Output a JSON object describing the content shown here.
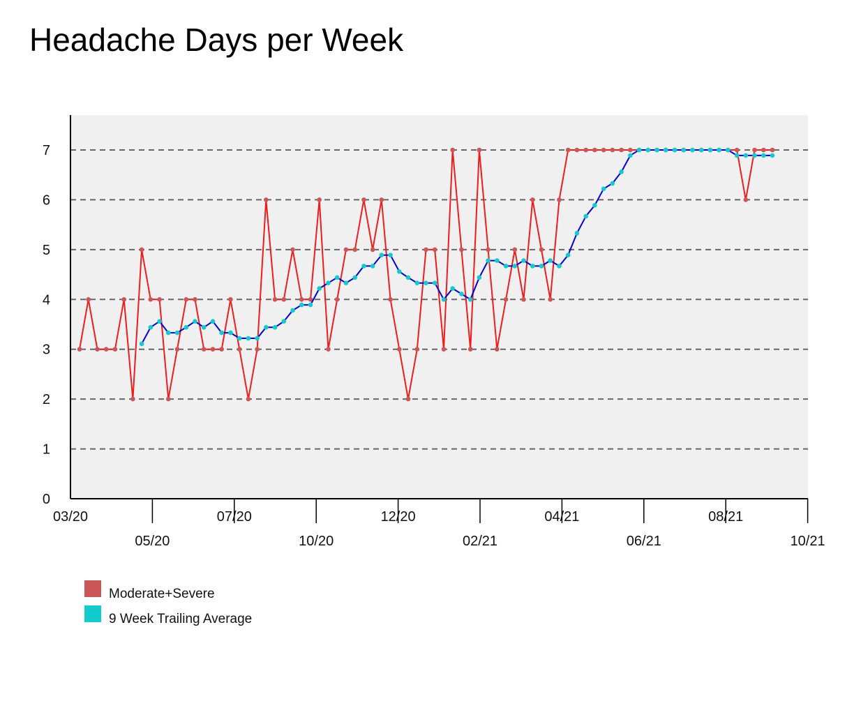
{
  "chart_data": {
    "type": "line",
    "title": "Headache Days per Week",
    "xlabel": "",
    "ylabel": "",
    "ylim": [
      0,
      7.7
    ],
    "yticks": [
      0,
      1,
      2,
      3,
      4,
      5,
      6,
      7
    ],
    "grid": "horizontal dashed",
    "legend_position": "bottom-left",
    "x_ticks_major": [
      "03/20",
      "07/20",
      "12/20",
      "04/21",
      "08/21"
    ],
    "x_ticks_minor": [
      "05/20",
      "10/20",
      "02/21",
      "06/21",
      "10/21"
    ],
    "series": [
      {
        "name": "Moderate+Severe",
        "color": "#ee1c1c",
        "marker_color": "#cc5555",
        "values": [
          3,
          4,
          3,
          3,
          3,
          4,
          2,
          5,
          4,
          4,
          2,
          3,
          4,
          4,
          3,
          3,
          3,
          4,
          3,
          2,
          3,
          6,
          4,
          4,
          5,
          4,
          4,
          6,
          3,
          4,
          5,
          5,
          6,
          5,
          6,
          4,
          3,
          2,
          3,
          5,
          5,
          3,
          7,
          5,
          3,
          7,
          5,
          3,
          4,
          5,
          4,
          6,
          5,
          4,
          6,
          7,
          7,
          7,
          7,
          7,
          7,
          7,
          7,
          7,
          7,
          7,
          7,
          7,
          7,
          7,
          7,
          7,
          7,
          7,
          7,
          6,
          7,
          7,
          7
        ]
      },
      {
        "name": "9 Week Trailing Average",
        "color": "#0000dd",
        "marker_color": "#11cccc",
        "start_index": 7,
        "values": [
          3.11,
          3.44,
          3.56,
          3.33,
          3.33,
          3.44,
          3.56,
          3.44,
          3.56,
          3.33,
          3.33,
          3.22,
          3.22,
          3.22,
          3.44,
          3.44,
          3.56,
          3.78,
          3.89,
          3.89,
          4.22,
          4.33,
          4.44,
          4.33,
          4.44,
          4.67,
          4.67,
          4.89,
          4.89,
          4.56,
          4.44,
          4.33,
          4.33,
          4.33,
          4.0,
          4.22,
          4.11,
          4.0,
          4.44,
          4.78,
          4.78,
          4.67,
          4.67,
          4.78,
          4.67,
          4.67,
          4.78,
          4.67,
          4.89,
          5.33,
          5.67,
          5.89,
          6.22,
          6.33,
          6.56,
          6.89,
          7,
          7,
          7,
          7,
          7,
          7,
          7,
          7,
          7,
          7,
          7,
          6.89,
          6.89,
          6.89,
          6.89,
          6.89
        ]
      }
    ]
  }
}
